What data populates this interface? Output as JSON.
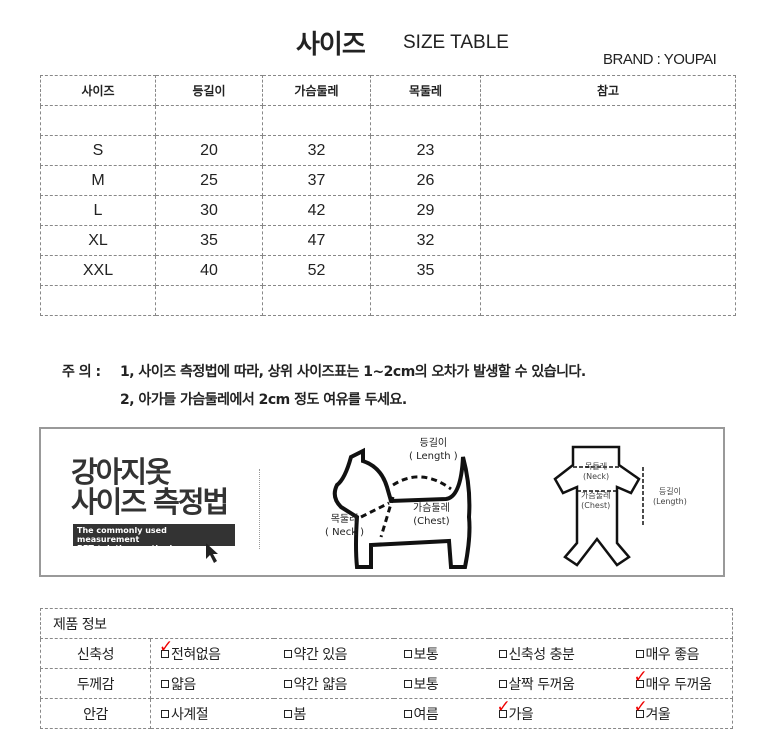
{
  "header": {
    "title_ko": "사이즈",
    "title_en": "SIZE TABLE",
    "brand": "BRAND : YOUPAI"
  },
  "size_table": {
    "columns": [
      "사이즈",
      "등길이",
      "가슴둘레",
      "목둘레",
      "참고"
    ],
    "rows": [
      [
        "S",
        "20",
        "32",
        "23",
        ""
      ],
      [
        "M",
        "25",
        "37",
        "26",
        ""
      ],
      [
        "L",
        "30",
        "42",
        "29",
        ""
      ],
      [
        "XL",
        "35",
        "47",
        "32",
        ""
      ],
      [
        "XXL",
        "40",
        "52",
        "35",
        ""
      ]
    ]
  },
  "notes": {
    "label": "주 의 :",
    "lines": [
      "1, 사이즈 측정법에 따라, 상위 사이즈표는 1~2cm의 오차가 발생할 수 있습니다.",
      "2, 아가들 가슴둘레에서 2cm 정도 여유를 두세요."
    ]
  },
  "measure": {
    "title_line1": "강아지옷",
    "title_line2": "사이즈 측정법",
    "subtitle_line1": "The commonly used measurement",
    "subtitle_line2": "PET / clothes method",
    "dog": {
      "length": "등길이",
      "length_en": "( Length )",
      "chest": "가슴둘레",
      "chest_en": "(Chest)",
      "neck": "목둘레",
      "neck_en": "( Neck )"
    },
    "clothes": {
      "neck": "목둘레",
      "neck_en": "(Neck)",
      "chest": "가슴둘레",
      "chest_en": "(Chest)",
      "length": "등길이",
      "length_en": "(Length)"
    }
  },
  "product_info": {
    "title": "제품 정보",
    "rows": [
      {
        "label": "신축성",
        "options": [
          {
            "text": "전혀없음",
            "checked": true
          },
          {
            "text": "약간 있음",
            "checked": false
          },
          {
            "text": "보통",
            "checked": false
          },
          {
            "text": "신축성 충분",
            "checked": false
          },
          {
            "text": "매우 좋음",
            "checked": false
          }
        ]
      },
      {
        "label": "두께감",
        "options": [
          {
            "text": "얇음",
            "checked": false
          },
          {
            "text": "약간 얇음",
            "checked": false
          },
          {
            "text": "보통",
            "checked": false
          },
          {
            "text": "살짝 두꺼움",
            "checked": false
          },
          {
            "text": "매우 두꺼움",
            "checked": true
          }
        ]
      },
      {
        "label": "안감",
        "options": [
          {
            "text": "사계절",
            "checked": false
          },
          {
            "text": "봄",
            "checked": false
          },
          {
            "text": "여름",
            "checked": false
          },
          {
            "text": "가을",
            "checked": true
          },
          {
            "text": "겨울",
            "checked": true
          }
        ]
      }
    ]
  },
  "colors": {
    "check": "#ee0000",
    "border": "#888888"
  }
}
